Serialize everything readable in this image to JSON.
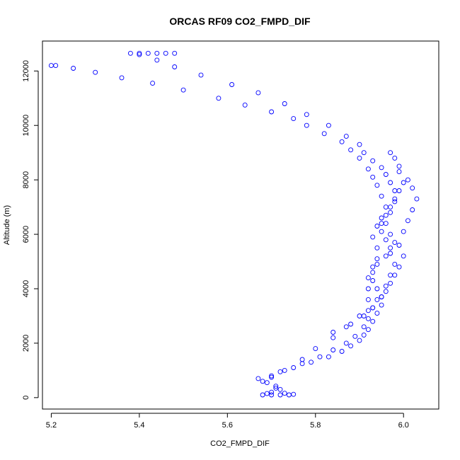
{
  "chart_data": {
    "type": "scatter",
    "title": "ORCAS RF09 CO2_FMPD_DIF",
    "xlabel": "CO2_FMPD_DIF",
    "ylabel": "Altitude (m)",
    "xlim": [
      5.18,
      6.08
    ],
    "ylim": [
      -420,
      13100
    ],
    "xticks": [
      5.2,
      5.4,
      5.6,
      5.8,
      6.0
    ],
    "xtick_labels": [
      "5.2",
      "5.4",
      "5.6",
      "5.8",
      "6.0"
    ],
    "yticks": [
      0,
      2000,
      4000,
      6000,
      8000,
      10000,
      12000
    ],
    "ytick_labels": [
      "0",
      "2000",
      "4000",
      "6000",
      "8000",
      "10000",
      "12000"
    ],
    "grid": false,
    "legend": "none",
    "marker": "open-circle",
    "color": "#0000ff",
    "series": [
      {
        "values": [
          [
            5.68,
            100
          ],
          [
            5.7,
            100
          ],
          [
            5.72,
            100
          ],
          [
            5.74,
            100
          ],
          [
            5.75,
            120
          ],
          [
            5.73,
            160
          ],
          [
            5.7,
            200
          ],
          [
            5.72,
            300
          ],
          [
            5.71,
            420
          ],
          [
            5.68,
            600
          ],
          [
            5.67,
            700
          ],
          [
            5.7,
            800
          ],
          [
            5.72,
            950
          ],
          [
            5.75,
            1100
          ],
          [
            5.79,
            1300
          ],
          [
            5.83,
            1500
          ],
          [
            5.86,
            1700
          ],
          [
            5.88,
            1900
          ],
          [
            5.9,
            2100
          ],
          [
            5.91,
            2300
          ],
          [
            5.92,
            2500
          ],
          [
            5.93,
            2800
          ],
          [
            5.94,
            3100
          ],
          [
            5.95,
            3400
          ],
          [
            5.95,
            3700
          ],
          [
            5.94,
            4000
          ],
          [
            5.93,
            4300
          ],
          [
            5.93,
            4600
          ],
          [
            5.94,
            4900
          ],
          [
            5.96,
            5200
          ],
          [
            5.97,
            5500
          ],
          [
            5.96,
            5800
          ],
          [
            5.95,
            6100
          ],
          [
            5.95,
            6400
          ],
          [
            5.96,
            6700
          ],
          [
            5.97,
            7000
          ],
          [
            5.98,
            7300
          ],
          [
            5.98,
            7600
          ],
          [
            5.97,
            7900
          ],
          [
            5.96,
            8200
          ],
          [
            5.95,
            8450
          ],
          [
            5.93,
            8700
          ],
          [
            5.91,
            9000
          ],
          [
            5.9,
            9300
          ],
          [
            5.87,
            9600
          ],
          [
            5.83,
            10000
          ],
          [
            5.78,
            10400
          ],
          [
            5.73,
            10800
          ],
          [
            5.67,
            11200
          ],
          [
            5.61,
            11500
          ],
          [
            5.54,
            11850
          ],
          [
            5.48,
            12150
          ],
          [
            5.44,
            12400
          ],
          [
            5.4,
            12600
          ],
          [
            5.38,
            12650
          ],
          [
            5.4,
            12650
          ],
          [
            5.42,
            12650
          ],
          [
            5.44,
            12650
          ],
          [
            5.46,
            12650
          ],
          [
            5.48,
            12650
          ],
          [
            5.69,
            150
          ],
          [
            5.71,
            350
          ],
          [
            5.69,
            550
          ],
          [
            5.7,
            750
          ],
          [
            5.73,
            1000
          ],
          [
            5.77,
            1250
          ],
          [
            5.81,
            1500
          ],
          [
            5.84,
            1750
          ],
          [
            5.87,
            2000
          ],
          [
            5.89,
            2250
          ],
          [
            5.91,
            2600
          ],
          [
            5.92,
            2900
          ],
          [
            5.92,
            3200
          ],
          [
            5.92,
            3600
          ],
          [
            5.92,
            4000
          ],
          [
            5.92,
            4400
          ],
          [
            5.93,
            4800
          ],
          [
            5.94,
            5100
          ],
          [
            5.94,
            5500
          ],
          [
            5.93,
            5900
          ],
          [
            5.94,
            6300
          ],
          [
            5.95,
            6600
          ],
          [
            5.96,
            7000
          ],
          [
            5.95,
            7400
          ],
          [
            5.94,
            7800
          ],
          [
            5.93,
            8100
          ],
          [
            5.92,
            8400
          ],
          [
            5.9,
            8800
          ],
          [
            5.88,
            9100
          ],
          [
            5.86,
            9400
          ],
          [
            5.82,
            9700
          ],
          [
            5.78,
            10000
          ],
          [
            5.75,
            10250
          ],
          [
            5.7,
            10500
          ],
          [
            5.64,
            10750
          ],
          [
            5.58,
            11000
          ],
          [
            5.5,
            11300
          ],
          [
            5.43,
            11550
          ],
          [
            5.36,
            11750
          ],
          [
            5.3,
            11950
          ],
          [
            5.25,
            12100
          ],
          [
            5.21,
            12200
          ],
          [
            5.2,
            12200
          ],
          [
            5.84,
            2400
          ],
          [
            5.88,
            2700
          ],
          [
            5.91,
            3000
          ],
          [
            5.93,
            3300
          ],
          [
            5.94,
            3600
          ],
          [
            5.96,
            3900
          ],
          [
            5.97,
            4200
          ],
          [
            5.98,
            4500
          ],
          [
            5.98,
            4900
          ],
          [
            5.97,
            5300
          ],
          [
            5.98,
            5700
          ],
          [
            6.0,
            6100
          ],
          [
            6.01,
            6500
          ],
          [
            6.02,
            6900
          ],
          [
            6.03,
            7300
          ],
          [
            6.02,
            7700
          ],
          [
            6.01,
            8000
          ],
          [
            5.99,
            8300
          ],
          [
            5.98,
            8800
          ],
          [
            5.77,
            1400
          ],
          [
            5.8,
            1800
          ],
          [
            5.84,
            2200
          ],
          [
            5.87,
            2600
          ],
          [
            5.9,
            3000
          ],
          [
            5.93,
            3300
          ],
          [
            5.95,
            3700
          ],
          [
            5.96,
            4100
          ],
          [
            5.97,
            4500
          ],
          [
            5.99,
            4800
          ],
          [
            6.0,
            5200
          ],
          [
            5.99,
            5600
          ],
          [
            5.97,
            6000
          ],
          [
            5.96,
            6400
          ],
          [
            5.97,
            6800
          ],
          [
            5.98,
            7200
          ],
          [
            5.99,
            7600
          ],
          [
            6.0,
            7900
          ],
          [
            5.99,
            8500
          ],
          [
            5.97,
            9000
          ]
        ]
      }
    ]
  }
}
